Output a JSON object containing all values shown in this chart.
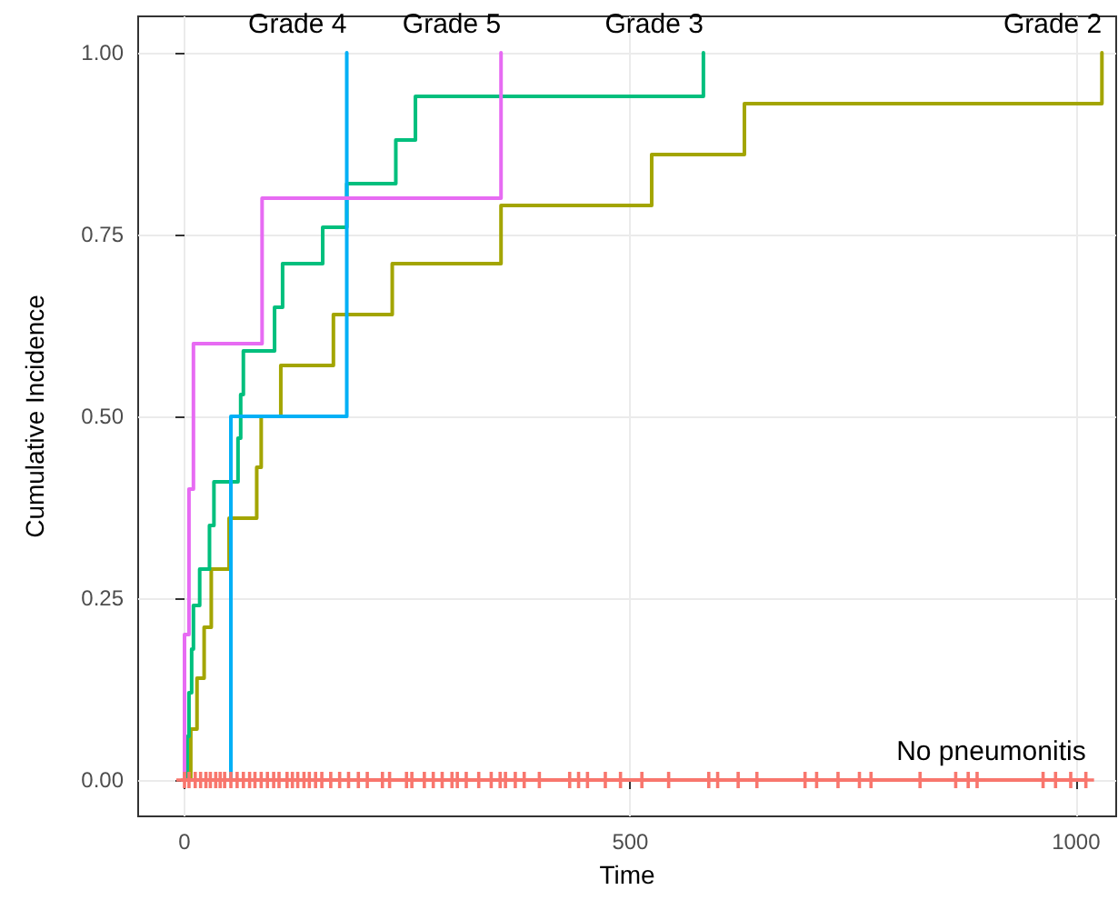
{
  "chart_data": {
    "type": "step",
    "xlabel": "Time",
    "ylabel": "Cumulative Incidence",
    "xlim": [
      -52,
      1045
    ],
    "ylim": [
      -0.05,
      1.05
    ],
    "xticks": [
      0,
      500,
      1000
    ],
    "yticks": [
      {
        "value": 0,
        "label": "0.00"
      },
      {
        "value": 0.25,
        "label": "0.25"
      },
      {
        "value": 0.5,
        "label": "0.50"
      },
      {
        "value": 0.75,
        "label": "0.75"
      },
      {
        "value": 1,
        "label": "1.00"
      }
    ],
    "grid": true,
    "legend": false,
    "marker": "none",
    "line_style": "solid",
    "series": [
      {
        "name": "No pneumonitis",
        "color": "#f8766d",
        "marker": "cross",
        "x": [
          0,
          5,
          12,
          18,
          24,
          29,
          35,
          40,
          45,
          52,
          59,
          66,
          73,
          79,
          86,
          93,
          100,
          106,
          115,
          121,
          127,
          134,
          140,
          147,
          154,
          164,
          174,
          184,
          195,
          205,
          222,
          230,
          249,
          255,
          269,
          279,
          289,
          300,
          306,
          316,
          330,
          344,
          354,
          360,
          371,
          381,
          398,
          432,
          442,
          452,
          472,
          489,
          513,
          543,
          588,
          598,
          621,
          642,
          696,
          709,
          733,
          757,
          770,
          825,
          865,
          879,
          889,
          963,
          977,
          994,
          1011
        ],
        "values": [
          0,
          0,
          0,
          0,
          0,
          0,
          0,
          0,
          0,
          0,
          0,
          0,
          0,
          0,
          0,
          0,
          0,
          0,
          0,
          0,
          0,
          0,
          0,
          0,
          0,
          0,
          0,
          0,
          0,
          0,
          0,
          0,
          0,
          0,
          0,
          0,
          0,
          0,
          0,
          0,
          0,
          0,
          0,
          0,
          0,
          0,
          0,
          0,
          0,
          0,
          0,
          0,
          0,
          0,
          0,
          0,
          0,
          0,
          0,
          0,
          0,
          0,
          0,
          0,
          0,
          0,
          0,
          0,
          0,
          0,
          0
        ]
      },
      {
        "name": "Grade 2",
        "color": "#a3a500",
        "x": [
          0,
          7,
          14,
          22,
          30,
          50,
          81,
          86,
          108,
          167,
          233,
          355,
          524,
          628,
          1029
        ],
        "values": [
          0,
          0.07,
          0.14,
          0.21,
          0.29,
          0.36,
          0.43,
          0.5,
          0.57,
          0.64,
          0.71,
          0.79,
          0.86,
          0.93,
          1
        ]
      },
      {
        "name": "Grade 3",
        "color": "#00bf7d",
        "x": [
          0,
          3,
          5,
          8,
          10,
          17,
          28,
          33,
          60,
          63,
          66,
          101,
          110,
          155,
          182,
          237,
          259,
          582
        ],
        "values": [
          0,
          0.06,
          0.12,
          0.18,
          0.24,
          0.29,
          0.35,
          0.41,
          0.47,
          0.53,
          0.59,
          0.65,
          0.71,
          0.76,
          0.82,
          0.88,
          0.94,
          1
        ]
      },
      {
        "name": "Grade 4",
        "color": "#00b0f6",
        "x": [
          0,
          52,
          182
        ],
        "values": [
          0,
          0.5,
          1
        ]
      },
      {
        "name": "Grade 5",
        "color": "#e76bf3",
        "x": [
          0,
          0,
          5,
          10,
          87,
          355
        ],
        "values": [
          0,
          0.2,
          0.4,
          0.6,
          0.8,
          1
        ]
      }
    ]
  }
}
